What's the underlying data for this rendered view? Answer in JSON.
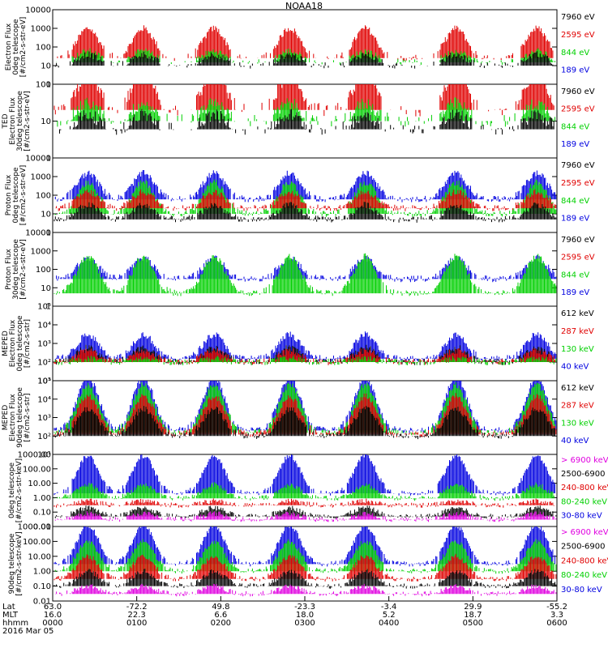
{
  "title": "NOAA18",
  "chart_data": [
    {
      "type": "line",
      "ylabel": [
        "Electron Flux",
        "0deg telescope",
        "[#/cm2-s-str-eV]"
      ],
      "y_scale": "log",
      "yticks": [
        "1",
        "10",
        "100",
        "1000",
        "10000"
      ],
      "series": [
        {
          "name": "7960 eV",
          "color": "#000000"
        },
        {
          "name": "2595 eV",
          "color": "#e00000"
        },
        {
          "name": "844 eV",
          "color": "#00d000"
        },
        {
          "name": "189 eV",
          "color": "#0000e0"
        }
      ],
      "plotted_series": [
        {
          "series": "2595 eV",
          "level": [
            25,
            1000
          ]
        },
        {
          "series": "844 eV",
          "level": [
            15,
            60
          ]
        },
        {
          "series": "7960 eV",
          "level": [
            10,
            40
          ]
        }
      ]
    },
    {
      "type": "line",
      "ylabel": [
        "TED",
        "Electron Flux",
        "30deg telescope",
        "[#/cm2-s-str-eV]"
      ],
      "y_scale": "log",
      "yticks": [
        "1",
        "10",
        "100"
      ],
      "series": [
        {
          "name": "7960 eV",
          "color": "#000000"
        },
        {
          "name": "2595 eV",
          "color": "#e00000"
        },
        {
          "name": "844 eV",
          "color": "#00d000"
        },
        {
          "name": "189 eV",
          "color": "#0000e0"
        }
      ],
      "plotted_series": [
        {
          "series": "2595 eV",
          "level": [
            20,
            200
          ]
        },
        {
          "series": "844 eV",
          "level": [
            10,
            30
          ]
        },
        {
          "series": "7960 eV",
          "level": [
            6,
            15
          ]
        }
      ]
    },
    {
      "type": "line",
      "ylabel": [
        "Proton Flux",
        "0deg telescope",
        "[#/cm2-s-str-eV]"
      ],
      "y_scale": "log",
      "yticks": [
        "1",
        "10",
        "100",
        "1000",
        "10000"
      ],
      "series": [
        {
          "name": "7960 eV",
          "color": "#000000"
        },
        {
          "name": "2595 eV",
          "color": "#e00000"
        },
        {
          "name": "844 eV",
          "color": "#00d000"
        },
        {
          "name": "189 eV",
          "color": "#0000e0"
        }
      ],
      "plotted_series": [
        {
          "series": "189 eV",
          "level": [
            60,
            1500
          ]
        },
        {
          "series": "844 eV",
          "level": [
            10,
            500
          ]
        },
        {
          "series": "2595 eV",
          "level": [
            20,
            150
          ]
        },
        {
          "series": "7960 eV",
          "level": [
            5,
            30
          ]
        }
      ]
    },
    {
      "type": "line",
      "ylabel": [
        "Proton Flux",
        "30deg telescope",
        "[#/cm2-s-str-eV]"
      ],
      "y_scale": "log",
      "yticks": [
        "1",
        "10",
        "100",
        "1000",
        "10000"
      ],
      "series": [
        {
          "name": "7960 eV",
          "color": "#000000"
        },
        {
          "name": "2595 eV",
          "color": "#e00000"
        },
        {
          "name": "844 eV",
          "color": "#00d000"
        },
        {
          "name": "189 eV",
          "color": "#0000e0"
        }
      ],
      "plotted_series": [
        {
          "series": "189 eV",
          "level": [
            30,
            400
          ]
        },
        {
          "series": "844 eV",
          "level": [
            5,
            500
          ]
        }
      ]
    },
    {
      "type": "line",
      "ylabel": [
        "MEPED",
        "Electron Flux",
        "0deg telescope",
        "[#/cm2-s-str]"
      ],
      "y_scale": "log",
      "yticks": [
        "10¹",
        "10²",
        "10³",
        "10⁴",
        "10⁵"
      ],
      "series": [
        {
          "name": "612 keV",
          "color": "#000000"
        },
        {
          "name": "287 keV",
          "color": "#e00000"
        },
        {
          "name": "130 keV",
          "color": "#00d000"
        },
        {
          "name": "40 keV",
          "color": "#0000e0"
        }
      ],
      "plotted_series": [
        {
          "series": "40 keV",
          "level": [
            150,
            3000
          ]
        },
        {
          "series": "612 keV",
          "level": [
            100,
            600
          ]
        },
        {
          "series": "287 keV",
          "level": [
            100,
            400
          ]
        },
        {
          "series": "130 keV",
          "level": [
            100,
            150
          ]
        }
      ]
    },
    {
      "type": "line",
      "ylabel": [
        "MEPED",
        "Electron Flux",
        "90deg telescope",
        "[#/cm2-s-str]"
      ],
      "y_scale": "log",
      "yticks": [
        "10¹",
        "10²",
        "10³",
        "10⁴",
        "10⁵"
      ],
      "series": [
        {
          "name": "612 keV",
          "color": "#000000"
        },
        {
          "name": "287 keV",
          "color": "#e00000"
        },
        {
          "name": "130 keV",
          "color": "#00d000"
        },
        {
          "name": "40 keV",
          "color": "#0000e0"
        }
      ],
      "plotted_series": [
        {
          "series": "40 keV",
          "level": [
            200,
            150000
          ]
        },
        {
          "series": "130 keV",
          "level": [
            150,
            60000
          ]
        },
        {
          "series": "287 keV",
          "level": [
            120,
            15000
          ]
        },
        {
          "series": "612 keV",
          "level": [
            100,
            3000
          ]
        }
      ]
    },
    {
      "type": "line",
      "ylabel": [
        "0deg telescope",
        "[#/cm2-s-str-keV]"
      ],
      "y_scale": "log",
      "yticks": [
        "0.01",
        "0.10",
        "1.00",
        "10.00",
        "100.00",
        "1000.00"
      ],
      "series": [
        {
          "name": "> 6900 keV",
          "color": "#e000e0"
        },
        {
          "name": "2500-6900",
          "color": "#000000"
        },
        {
          "name": "240-800 keV",
          "color": "#e00000"
        },
        {
          "name": "80-240 keV",
          "color": "#00d000"
        },
        {
          "name": "30-80 keV",
          "color": "#0000e0"
        }
      ],
      "plotted_series": [
        {
          "series": "30-80 keV",
          "level": [
            2,
            800
          ]
        },
        {
          "series": "80-240 keV",
          "level": [
            0.9,
            8
          ]
        },
        {
          "series": "240-800 keV",
          "level": [
            0.3,
            0.6
          ]
        },
        {
          "series": "2500-6900",
          "level": [
            0.05,
            0.2
          ]
        },
        {
          "series": "> 6900 keV",
          "level": [
            0.03,
            0.08
          ]
        }
      ]
    },
    {
      "type": "line",
      "ylabel": [
        "90deg telescope",
        "[#/cm2-s-str-keV]"
      ],
      "y_scale": "log",
      "yticks": [
        "0.01",
        "0.10",
        "1.00",
        "10.00",
        "100.00",
        "1000.00"
      ],
      "series": [
        {
          "name": "> 6900 keV",
          "color": "#e000e0"
        },
        {
          "name": "2500-6900",
          "color": "#000000"
        },
        {
          "name": "240-800 keV",
          "color": "#e00000"
        },
        {
          "name": "80-240 keV",
          "color": "#00d000"
        },
        {
          "name": "30-80 keV",
          "color": "#0000e0"
        }
      ],
      "plotted_series": [
        {
          "series": "30-80 keV",
          "level": [
            3,
            1200
          ]
        },
        {
          "series": "80-240 keV",
          "level": [
            1,
            100
          ]
        },
        {
          "series": "240-800 keV",
          "level": [
            0.3,
            10
          ]
        },
        {
          "series": "2500-6900",
          "level": [
            0.1,
            1
          ]
        },
        {
          "series": "> 6900 keV",
          "level": [
            0.03,
            0.1
          ]
        }
      ]
    }
  ],
  "x_axis": {
    "row_labels": [
      "Lat",
      "MLT",
      "hhmm"
    ],
    "date": "2016 Mar 05",
    "ticks": [
      {
        "lat": "63.0",
        "mlt": "16.0",
        "time": "0000"
      },
      {
        "lat": "-72.2",
        "mlt": "22.3",
        "time": "0100"
      },
      {
        "lat": "49.8",
        "mlt": "6.6",
        "time": "0200"
      },
      {
        "lat": "-23.3",
        "mlt": "18.0",
        "time": "0300"
      },
      {
        "lat": "-3.4",
        "mlt": "5.2",
        "time": "0400"
      },
      {
        "lat": "29.9",
        "mlt": "18.7",
        "time": "0500"
      },
      {
        "lat": "-55.2",
        "mlt": "3.3",
        "time": "0600"
      }
    ]
  }
}
